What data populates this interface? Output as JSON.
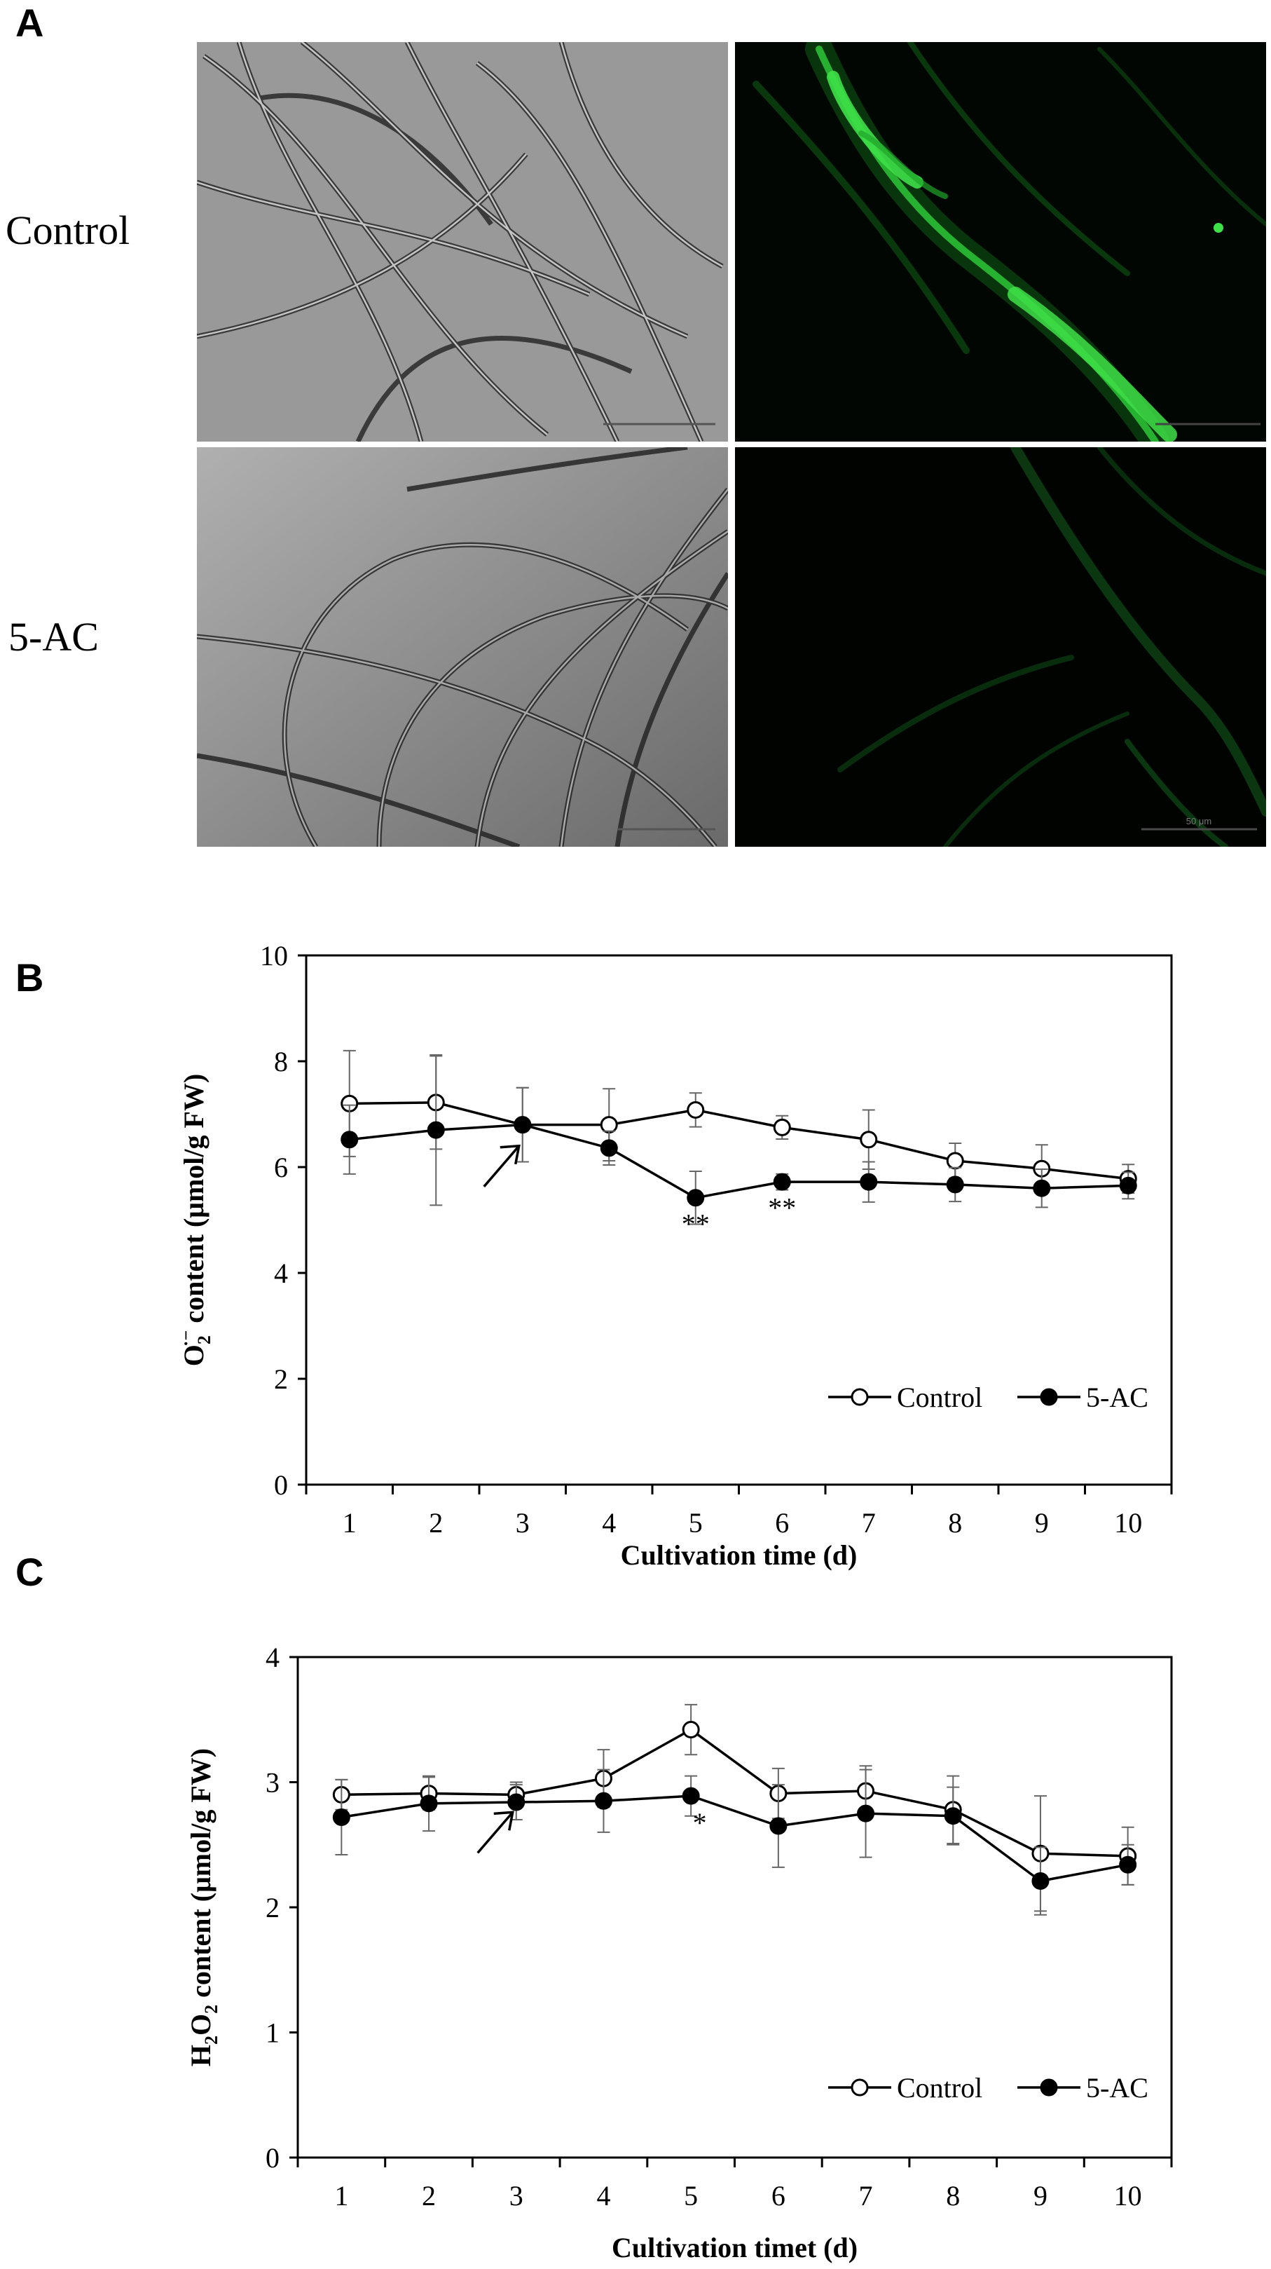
{
  "panels": {
    "a": "A",
    "b": "B",
    "c": "C"
  },
  "micrographs": {
    "row_labels": [
      "Control",
      "5-AC"
    ],
    "scale_bar_text": "50 μm",
    "fluorescence_color": "#2fd13a",
    "brightfield_color": "#8c8c8c"
  },
  "chart_data": [
    {
      "type": "line",
      "panel": "B",
      "xlabel": "Cultivation time (d)",
      "ylabel_parts": {
        "main": "O",
        "sub": "2",
        "sup": "·−",
        "rest": " content (μmol/g FW)"
      },
      "x": [
        1,
        2,
        3,
        4,
        5,
        6,
        7,
        8,
        9,
        10
      ],
      "ylim": [
        0,
        10
      ],
      "yticks": [
        0,
        2,
        4,
        6,
        8,
        10
      ],
      "series": [
        {
          "name": "Control",
          "marker": "open-circle",
          "values": [
            7.2,
            7.22,
            6.8,
            6.8,
            7.08,
            6.75,
            6.52,
            6.12,
            5.97,
            5.78
          ],
          "errors": [
            1.0,
            0.88,
            0.7,
            0.68,
            0.32,
            0.22,
            0.56,
            0.33,
            0.45,
            0.27
          ]
        },
        {
          "name": "5-AC",
          "marker": "filled-circle",
          "values": [
            6.52,
            6.7,
            6.8,
            6.36,
            5.42,
            5.72,
            5.72,
            5.67,
            5.6,
            5.65
          ],
          "errors": [
            0.65,
            1.42,
            0.7,
            0.32,
            0.5,
            0.15,
            0.38,
            0.32,
            0.36,
            0.25
          ]
        }
      ],
      "annotations": [
        {
          "text": "**",
          "x": 5,
          "y": 4.75
        },
        {
          "text": "**",
          "x": 6,
          "y": 5.05
        }
      ],
      "arrow_at_x": 3,
      "grid": false,
      "legend": "bottom-right"
    },
    {
      "type": "line",
      "panel": "C",
      "xlabel": "Cultivation timet (d)",
      "ylabel_parts": {
        "main": "H",
        "sub": "2",
        "mid": "O",
        "sub2": "2",
        "rest": " content (μmol/g FW)"
      },
      "x": [
        1,
        2,
        3,
        4,
        5,
        6,
        7,
        8,
        9,
        10
      ],
      "ylim": [
        0,
        4
      ],
      "yticks": [
        0,
        1,
        2,
        3,
        4
      ],
      "series": [
        {
          "name": "Control",
          "marker": "open-circle",
          "values": [
            2.9,
            2.91,
            2.9,
            3.03,
            3.42,
            2.91,
            2.93,
            2.78,
            2.43,
            2.41
          ],
          "errors": [
            0.12,
            0.13,
            0.1,
            0.23,
            0.2,
            0.2,
            0.2,
            0.27,
            0.46,
            0.23
          ]
        },
        {
          "name": "5-AC",
          "marker": "filled-circle",
          "values": [
            2.72,
            2.83,
            2.84,
            2.85,
            2.89,
            2.65,
            2.75,
            2.73,
            2.21,
            2.34
          ],
          "errors": [
            0.3,
            0.22,
            0.14,
            0.25,
            0.16,
            0.33,
            0.35,
            0.23,
            0.27,
            0.16
          ]
        }
      ],
      "annotations": [
        {
          "text": "*",
          "x": 5.1,
          "y": 2.6
        }
      ],
      "arrow_at_x": 3,
      "grid": false,
      "legend": "bottom-right"
    }
  ]
}
